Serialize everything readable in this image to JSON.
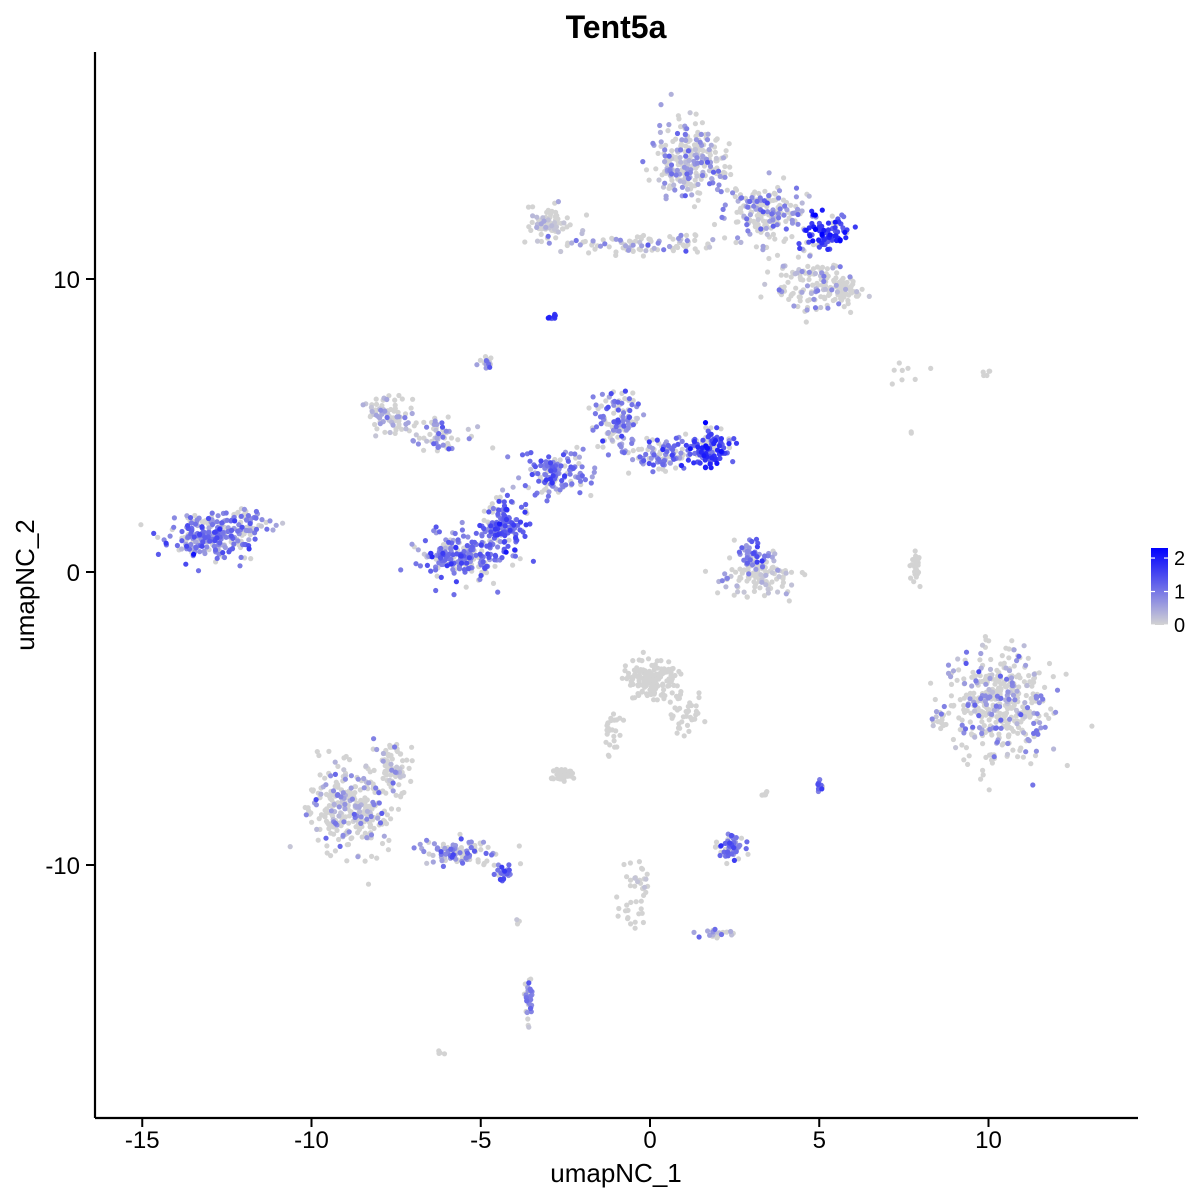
{
  "chart_data": {
    "type": "scatter",
    "title": "Tent5a",
    "xlabel": "umapNC_1",
    "ylabel": "umapNC_2",
    "xlim": [
      -16.5,
      14.5
    ],
    "ylim": [
      -18.3,
      17.6
    ],
    "xticks": [
      -15,
      -10,
      -5,
      0,
      5,
      10
    ],
    "yticks": [
      -10,
      0,
      10
    ],
    "xtick_labels": [
      "-15",
      "-10",
      "-5",
      "0",
      "5",
      "10"
    ],
    "ytick_labels": [
      "-10",
      "0",
      "10"
    ],
    "grid": false,
    "legend": {
      "position": "right",
      "type": "colorbar",
      "range": [
        0,
        2.3
      ],
      "ticks": [
        0,
        1,
        2
      ],
      "tick_labels": [
        "0",
        "1",
        "2"
      ],
      "low_color": "#d3d3d3",
      "high_color": "#0000ff"
    },
    "clusters": [
      {
        "cx": 1.2,
        "cy": 14.0,
        "sx": 0.9,
        "sy": 1.1,
        "n": 260,
        "expr": 0.55,
        "expr_frac": 0.45
      },
      {
        "cx": 3.4,
        "cy": 12.3,
        "sx": 1.0,
        "sy": 0.7,
        "n": 180,
        "expr": 0.7,
        "expr_frac": 0.45
      },
      {
        "cx": 5.2,
        "cy": 11.6,
        "sx": 0.5,
        "sy": 0.5,
        "n": 90,
        "expr": 1.7,
        "expr_frac": 0.8
      },
      {
        "cx": -3.0,
        "cy": 11.9,
        "sx": 0.5,
        "sy": 0.4,
        "n": 70,
        "expr": 0.3,
        "expr_frac": 0.25
      },
      {
        "cx": 0.0,
        "cy": 11.2,
        "sx": 2.5,
        "sy": 0.3,
        "n": 110,
        "expr": 0.6,
        "expr_frac": 0.35
      },
      {
        "cx": 4.7,
        "cy": 9.8,
        "sx": 0.9,
        "sy": 0.9,
        "n": 120,
        "expr": 0.6,
        "expr_frac": 0.35
      },
      {
        "cx": 5.7,
        "cy": 9.6,
        "sx": 0.4,
        "sy": 0.3,
        "n": 50,
        "expr": 0.1,
        "expr_frac": 0.1
      },
      {
        "cx": -2.9,
        "cy": 8.7,
        "sx": 0.1,
        "sy": 0.1,
        "n": 8,
        "expr": 1.8,
        "expr_frac": 0.9
      },
      {
        "cx": -13.0,
        "cy": 1.2,
        "sx": 1.0,
        "sy": 0.6,
        "n": 260,
        "expr": 0.9,
        "expr_frac": 0.7
      },
      {
        "cx": -11.8,
        "cy": 1.8,
        "sx": 0.5,
        "sy": 0.4,
        "n": 40,
        "expr": 0.8,
        "expr_frac": 0.6
      },
      {
        "cx": -7.8,
        "cy": 5.4,
        "sx": 0.6,
        "sy": 0.5,
        "n": 80,
        "expr": 0.35,
        "expr_frac": 0.35
      },
      {
        "cx": -6.2,
        "cy": 4.6,
        "sx": 0.9,
        "sy": 0.5,
        "n": 60,
        "expr": 0.6,
        "expr_frac": 0.4
      },
      {
        "cx": -5.5,
        "cy": 0.5,
        "sx": 1.0,
        "sy": 0.7,
        "n": 230,
        "expr": 1.0,
        "expr_frac": 0.75
      },
      {
        "cx": -4.3,
        "cy": 1.6,
        "sx": 0.5,
        "sy": 0.7,
        "n": 140,
        "expr": 1.2,
        "expr_frac": 0.8
      },
      {
        "cx": -2.8,
        "cy": 3.4,
        "sx": 0.9,
        "sy": 0.6,
        "n": 140,
        "expr": 1.0,
        "expr_frac": 0.7
      },
      {
        "cx": -1.0,
        "cy": 5.2,
        "sx": 0.6,
        "sy": 0.9,
        "n": 110,
        "expr": 0.9,
        "expr_frac": 0.6
      },
      {
        "cx": 0.5,
        "cy": 4.0,
        "sx": 1.0,
        "sy": 0.5,
        "n": 110,
        "expr": 0.9,
        "expr_frac": 0.6
      },
      {
        "cx": 1.8,
        "cy": 4.2,
        "sx": 0.5,
        "sy": 0.5,
        "n": 110,
        "expr": 1.5,
        "expr_frac": 0.85
      },
      {
        "cx": -4.8,
        "cy": 7.2,
        "sx": 0.2,
        "sy": 0.2,
        "n": 15,
        "expr": 0.5,
        "expr_frac": 0.5
      },
      {
        "cx": 3.2,
        "cy": -0.1,
        "sx": 1.0,
        "sy": 0.6,
        "n": 110,
        "expr": 0.4,
        "expr_frac": 0.3
      },
      {
        "cx": 3.0,
        "cy": 0.6,
        "sx": 0.4,
        "sy": 0.5,
        "n": 40,
        "expr": 1.0,
        "expr_frac": 0.8
      },
      {
        "cx": 7.9,
        "cy": 0.3,
        "sx": 0.15,
        "sy": 0.6,
        "n": 30,
        "expr": 0.0,
        "expr_frac": 0.0
      },
      {
        "cx": 10.3,
        "cy": -4.5,
        "sx": 1.2,
        "sy": 1.6,
        "n": 430,
        "expr": 0.7,
        "expr_frac": 0.3
      },
      {
        "cx": 8.5,
        "cy": -5.0,
        "sx": 0.3,
        "sy": 0.3,
        "n": 20,
        "expr": 0.4,
        "expr_frac": 0.2
      },
      {
        "cx": 0.0,
        "cy": -3.7,
        "sx": 0.6,
        "sy": 0.5,
        "n": 160,
        "expr": 0.0,
        "expr_frac": 0.0
      },
      {
        "cx": 1.0,
        "cy": -4.8,
        "sx": 0.5,
        "sy": 0.6,
        "n": 40,
        "expr": 0.0,
        "expr_frac": 0.0
      },
      {
        "cx": -1.1,
        "cy": -5.5,
        "sx": 0.25,
        "sy": 0.7,
        "n": 25,
        "expr": 0.0,
        "expr_frac": 0.0
      },
      {
        "cx": -2.6,
        "cy": -6.9,
        "sx": 0.3,
        "sy": 0.2,
        "n": 40,
        "expr": 0.0,
        "expr_frac": 0.0
      },
      {
        "cx": -8.8,
        "cy": -8.0,
        "sx": 1.0,
        "sy": 1.2,
        "n": 330,
        "expr": 0.6,
        "expr_frac": 0.3
      },
      {
        "cx": -7.6,
        "cy": -6.6,
        "sx": 0.3,
        "sy": 0.5,
        "n": 60,
        "expr": 0.4,
        "expr_frac": 0.25
      },
      {
        "cx": -5.6,
        "cy": -9.6,
        "sx": 1.0,
        "sy": 0.4,
        "n": 100,
        "expr": 0.8,
        "expr_frac": 0.6
      },
      {
        "cx": -4.3,
        "cy": -10.3,
        "sx": 0.25,
        "sy": 0.2,
        "n": 25,
        "expr": 1.2,
        "expr_frac": 0.9
      },
      {
        "cx": 2.4,
        "cy": -9.4,
        "sx": 0.35,
        "sy": 0.35,
        "n": 60,
        "expr": 1.0,
        "expr_frac": 0.7
      },
      {
        "cx": 5.0,
        "cy": -7.3,
        "sx": 0.08,
        "sy": 0.2,
        "n": 15,
        "expr": 1.2,
        "expr_frac": 0.9
      },
      {
        "cx": 3.4,
        "cy": -7.6,
        "sx": 0.1,
        "sy": 0.1,
        "n": 6,
        "expr": 0.0,
        "expr_frac": 0.0
      },
      {
        "cx": -0.4,
        "cy": -11.0,
        "sx": 0.4,
        "sy": 0.9,
        "n": 40,
        "expr": 0.1,
        "expr_frac": 0.1
      },
      {
        "cx": 2.0,
        "cy": -12.4,
        "sx": 0.5,
        "sy": 0.2,
        "n": 20,
        "expr": 0.7,
        "expr_frac": 0.6
      },
      {
        "cx": -3.6,
        "cy": -14.6,
        "sx": 0.12,
        "sy": 0.6,
        "n": 30,
        "expr": 0.9,
        "expr_frac": 0.6
      },
      {
        "cx": -3.9,
        "cy": -11.9,
        "sx": 0.05,
        "sy": 0.1,
        "n": 3,
        "expr": 0.5,
        "expr_frac": 0.5
      },
      {
        "cx": -6.1,
        "cy": -16.4,
        "sx": 0.1,
        "sy": 0.05,
        "n": 4,
        "expr": 0.0,
        "expr_frac": 0.0
      },
      {
        "cx": 8.0,
        "cy": 6.8,
        "sx": 0.8,
        "sy": 0.2,
        "n": 8,
        "expr": 0.0,
        "expr_frac": 0.0
      },
      {
        "cx": 7.7,
        "cy": 4.8,
        "sx": 0.05,
        "sy": 0.05,
        "n": 2,
        "expr": 0.0,
        "expr_frac": 0.0
      },
      {
        "cx": 9.8,
        "cy": 6.8,
        "sx": 0.3,
        "sy": 0.15,
        "n": 5,
        "expr": 0.0,
        "expr_frac": 0.0
      }
    ]
  }
}
